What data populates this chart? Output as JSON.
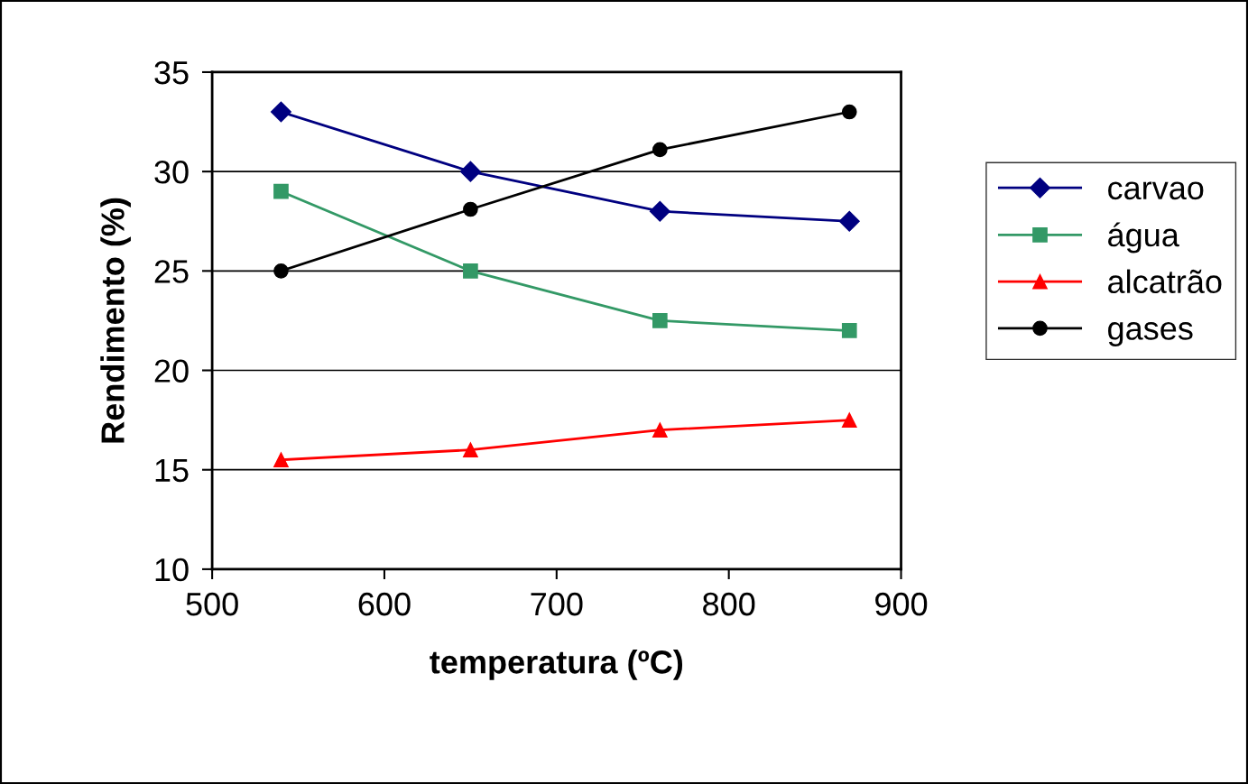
{
  "chart_data": {
    "type": "line",
    "xlabel": "temperatura (ºC)",
    "ylabel": "Rendimento (%)",
    "x": [
      540,
      650,
      760,
      870
    ],
    "series": [
      {
        "name": "carvao",
        "color": "#000080",
        "marker": "diamond",
        "values": [
          33,
          30,
          28,
          27.5
        ]
      },
      {
        "name": "água",
        "color": "#339966",
        "marker": "square",
        "values": [
          29,
          25,
          22.5,
          22
        ]
      },
      {
        "name": "alcatrão",
        "color": "#ff0000",
        "marker": "triangle",
        "values": [
          15.5,
          16,
          17,
          17.5
        ]
      },
      {
        "name": "gases",
        "color": "#000000",
        "marker": "circle",
        "values": [
          25,
          28.1,
          31.1,
          33
        ]
      }
    ],
    "xlim": [
      500,
      900
    ],
    "xticks": [
      500,
      600,
      700,
      800,
      900
    ],
    "ylim": [
      10,
      35
    ],
    "yticks": [
      10,
      15,
      20,
      25,
      30,
      35
    ],
    "grid": "y",
    "legend": "right",
    "line_style": "solid"
  }
}
